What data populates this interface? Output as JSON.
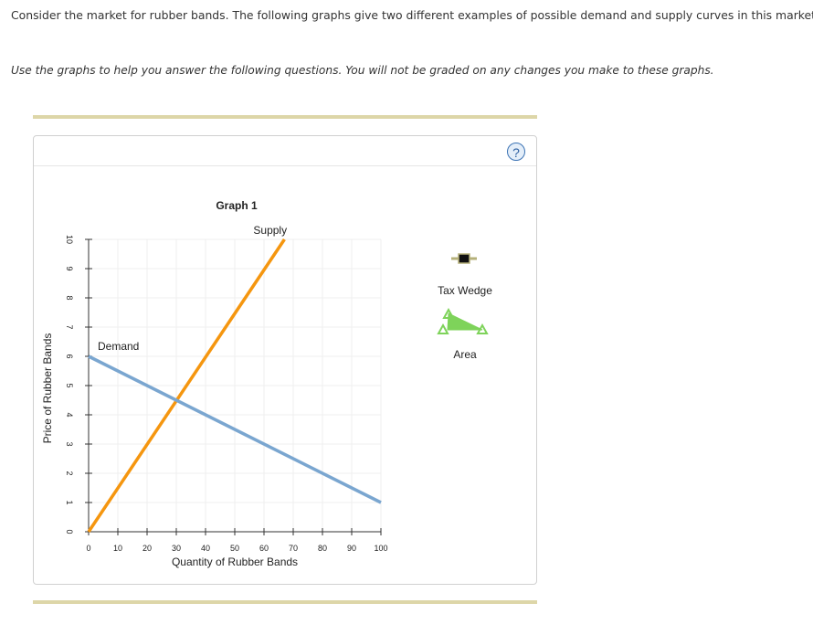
{
  "intro_text": "Consider the market for rubber bands. The following graphs give two different examples of possible demand and supply curves in this market.",
  "instructions_text": "Use the graphs to help you answer the following questions. You will not be graded on any changes you make to these graphs.",
  "help_icon": {
    "symbol": "?",
    "icon": "help-icon"
  },
  "palette": [
    {
      "label": "Tax Wedge",
      "icon": "tax-wedge-icon",
      "color": "#111111"
    },
    {
      "label": "Area",
      "icon": "area-triangle-icon",
      "color": "#7ed35a"
    }
  ],
  "chart_data": {
    "type": "line",
    "title": "Graph 1",
    "xlabel": "Quantity of Rubber Bands",
    "ylabel": "Price of Rubber Bands",
    "xlim": [
      0,
      100
    ],
    "ylim": [
      0,
      10
    ],
    "xticks": [
      0,
      10,
      20,
      30,
      40,
      50,
      60,
      70,
      80,
      90,
      100
    ],
    "yticks": [
      0,
      1,
      2,
      3,
      4,
      5,
      6,
      7,
      8,
      9,
      10
    ],
    "grid": true,
    "series": [
      {
        "name": "Supply",
        "color": "#f5960f",
        "x": [
          0,
          67
        ],
        "y": [
          0,
          10
        ]
      },
      {
        "name": "Demand",
        "color": "#7aa6d0",
        "x": [
          0,
          100
        ],
        "y": [
          6,
          1
        ]
      }
    ]
  }
}
